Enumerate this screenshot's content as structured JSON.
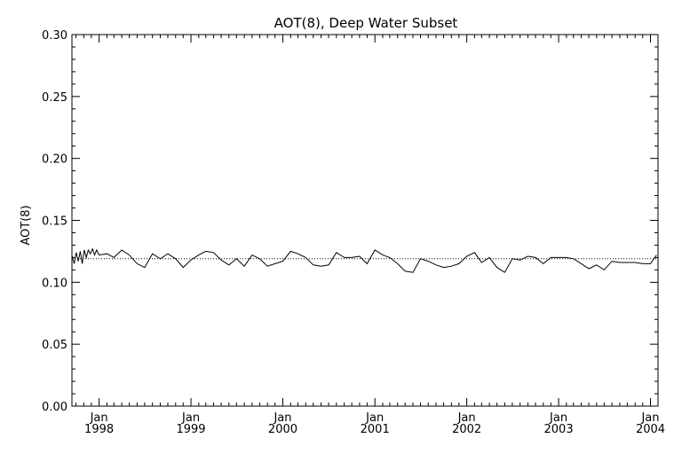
{
  "chart_data": {
    "type": "line",
    "title": "AOT(8), Deep Water Subset",
    "xlabel": "",
    "ylabel": "AOT(8)",
    "ylim": [
      0.0,
      0.3
    ],
    "xlim": [
      "1997-09-15",
      "2004-01-31"
    ],
    "yticks": [
      "0.00",
      "0.05",
      "0.10",
      "0.15",
      "0.20",
      "0.25",
      "0.30"
    ],
    "xticks": [
      {
        "month": "Jan",
        "year": "1998",
        "date": "1998-01-01"
      },
      {
        "month": "Jan",
        "year": "1999",
        "date": "1999-01-01"
      },
      {
        "month": "Jan",
        "year": "2000",
        "date": "2000-01-01"
      },
      {
        "month": "Jan",
        "year": "2001",
        "date": "2001-01-01"
      },
      {
        "month": "Jan",
        "year": "2002",
        "date": "2002-01-01"
      },
      {
        "month": "Jan",
        "year": "2003",
        "date": "2003-01-01"
      },
      {
        "month": "Jan",
        "year": "2004",
        "date": "2004-01-01"
      }
    ],
    "reference_line": {
      "y": 0.119,
      "style": "dotted"
    },
    "grid": false,
    "series": [
      {
        "x": [
          "1997-09-16",
          "1997-09-24",
          "1997-10-02",
          "1997-10-10",
          "1997-10-18",
          "1997-10-26",
          "1997-11-03",
          "1997-11-11",
          "1997-11-19",
          "1997-11-27",
          "1997-12-06",
          "1997-12-14",
          "1997-12-22",
          "1998-01-01",
          "1998-02-01",
          "1998-03-01",
          "1998-04-01",
          "1998-05-01",
          "1998-06-01",
          "1998-07-01",
          "1998-08-01",
          "1998-09-01",
          "1998-10-01",
          "1998-11-01",
          "1998-12-01",
          "1999-01-01",
          "1999-02-01",
          "1999-03-01",
          "1999-04-01",
          "1999-05-01",
          "1999-06-01",
          "1999-07-01",
          "1999-08-01",
          "1999-09-01",
          "1999-10-01",
          "1999-11-01",
          "1999-12-01",
          "2000-01-01",
          "2000-02-01",
          "2000-03-01",
          "2000-04-01",
          "2000-05-01",
          "2000-06-01",
          "2000-07-01",
          "2000-08-01",
          "2000-09-01",
          "2000-10-01",
          "2000-11-01",
          "2000-12-01",
          "2001-01-01",
          "2001-02-01",
          "2001-03-01",
          "2001-04-01",
          "2001-05-01",
          "2001-06-01",
          "2001-07-01",
          "2001-08-01",
          "2001-09-01",
          "2001-10-01",
          "2001-11-01",
          "2001-12-01",
          "2002-01-01",
          "2002-02-01",
          "2002-03-01",
          "2002-04-01",
          "2002-05-01",
          "2002-06-01",
          "2002-07-01",
          "2002-08-01",
          "2002-09-01",
          "2002-10-01",
          "2002-11-01",
          "2002-12-01",
          "2003-01-01",
          "2003-02-01",
          "2003-03-01",
          "2003-04-01",
          "2003-05-01",
          "2003-06-01",
          "2003-07-01",
          "2003-08-01",
          "2003-09-01",
          "2003-10-01",
          "2003-11-01",
          "2003-12-01",
          "2004-01-01",
          "2004-01-25"
        ],
        "y": [
          0.121,
          0.115,
          0.124,
          0.117,
          0.125,
          0.115,
          0.126,
          0.12,
          0.126,
          0.123,
          0.127,
          0.122,
          0.126,
          0.122,
          0.123,
          0.12,
          0.126,
          0.122,
          0.115,
          0.112,
          0.123,
          0.119,
          0.123,
          0.119,
          0.112,
          0.118,
          0.122,
          0.125,
          0.124,
          0.118,
          0.114,
          0.119,
          0.113,
          0.122,
          0.119,
          0.113,
          0.115,
          0.117,
          0.125,
          0.123,
          0.12,
          0.114,
          0.113,
          0.114,
          0.124,
          0.12,
          0.12,
          0.121,
          0.115,
          0.126,
          0.122,
          0.12,
          0.115,
          0.109,
          0.108,
          0.119,
          0.117,
          0.114,
          0.112,
          0.113,
          0.115,
          0.121,
          0.124,
          0.116,
          0.12,
          0.112,
          0.108,
          0.119,
          0.118,
          0.121,
          0.12,
          0.115,
          0.12,
          0.12,
          0.12,
          0.119,
          0.115,
          0.111,
          0.114,
          0.11,
          0.117,
          0.116,
          0.116,
          0.116,
          0.115,
          0.115,
          0.122
        ]
      }
    ]
  }
}
